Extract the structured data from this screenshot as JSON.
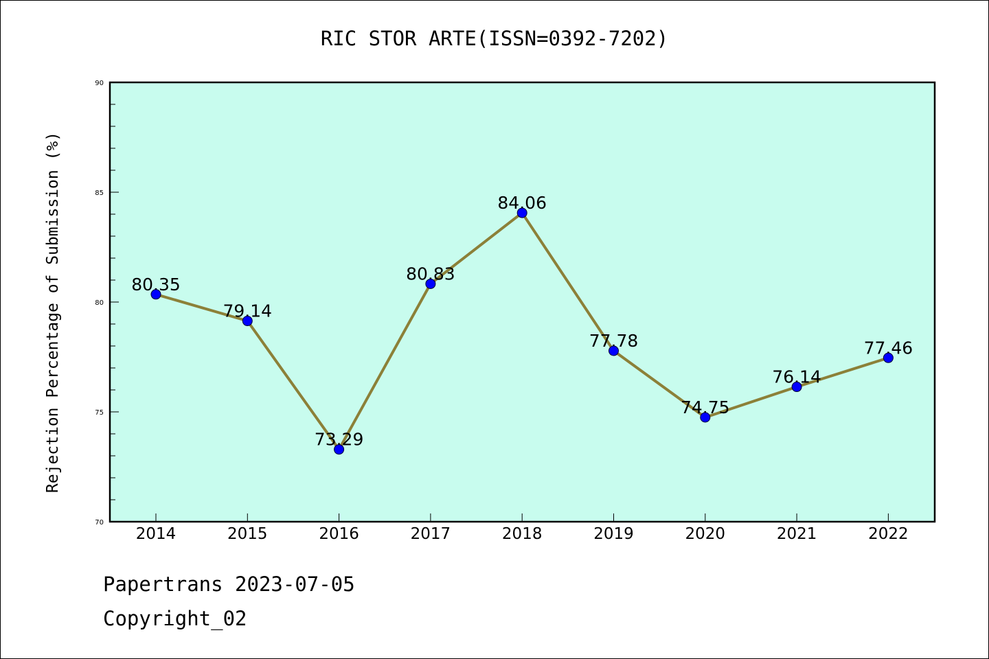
{
  "chart_data": {
    "type": "line",
    "title": "RIC STOR ARTE(ISSN=0392-7202)",
    "xlabel": "",
    "ylabel": "Rejection Percentage of Submission (%)",
    "categories": [
      "2014",
      "2015",
      "2016",
      "2017",
      "2018",
      "2019",
      "2020",
      "2021",
      "2022"
    ],
    "series": [
      {
        "values": [
          80.35,
          79.14,
          73.29,
          80.83,
          84.06,
          77.78,
          74.75,
          76.14,
          77.46
        ],
        "labels": [
          "80.35",
          "79.14",
          "73.29",
          "80.83",
          "84.06",
          "77.78",
          "74.75",
          "76.14",
          "77.46"
        ]
      }
    ],
    "ylim": [
      70,
      90
    ],
    "yticks": [
      70,
      75,
      80,
      85,
      90
    ],
    "grid": false,
    "legend": "none",
    "colors": {
      "plot_background": "#c8fcee",
      "line": "#8c8038",
      "marker": "#0000ff"
    }
  },
  "footer": {
    "date_line": "Papertrans 2023-07-05",
    "copyright_line": "Copyright_02"
  }
}
